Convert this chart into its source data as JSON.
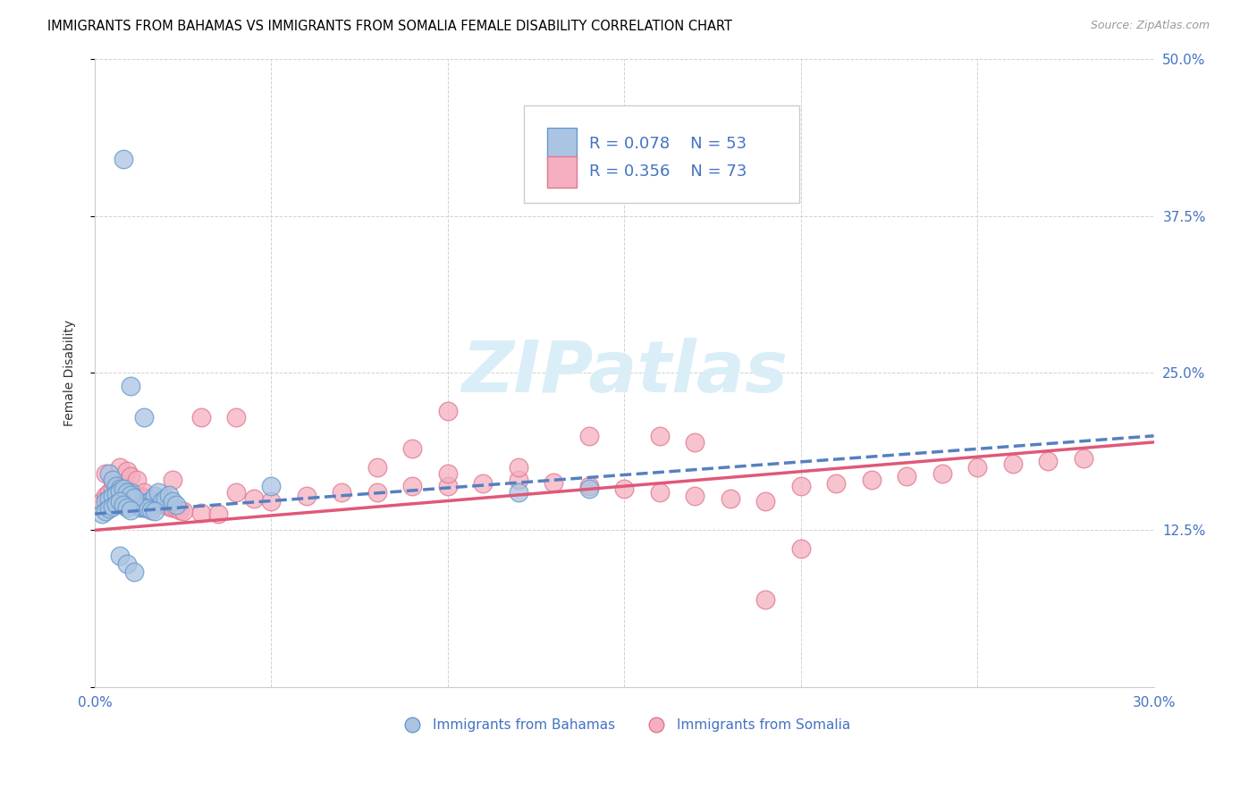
{
  "title": "IMMIGRANTS FROM BAHAMAS VS IMMIGRANTS FROM SOMALIA FEMALE DISABILITY CORRELATION CHART",
  "source": "Source: ZipAtlas.com",
  "ylabel": "Female Disability",
  "xlim": [
    0.0,
    0.3
  ],
  "ylim": [
    0.0,
    0.5
  ],
  "xticks": [
    0.0,
    0.05,
    0.1,
    0.15,
    0.2,
    0.25,
    0.3
  ],
  "yticks": [
    0.0,
    0.125,
    0.25,
    0.375,
    0.5
  ],
  "ytick_labels": [
    "",
    "12.5%",
    "25.0%",
    "37.5%",
    "50.0%"
  ],
  "xtick_labels": [
    "0.0%",
    "",
    "",
    "",
    "",
    "",
    "30.0%"
  ],
  "color_bahamas": "#aac4e2",
  "color_somalia": "#f5afc0",
  "edge_bahamas": "#6699cc",
  "edge_somalia": "#e07890",
  "line_bahamas": "#5580c0",
  "line_somalia": "#e05878",
  "watermark_color": "#daeef8",
  "bahamas_x": [
    0.008,
    0.01,
    0.012,
    0.013,
    0.015,
    0.016,
    0.017,
    0.018,
    0.019,
    0.02,
    0.021,
    0.022,
    0.023,
    0.004,
    0.005,
    0.006,
    0.007,
    0.008,
    0.009,
    0.01,
    0.011,
    0.012,
    0.013,
    0.014,
    0.015,
    0.016,
    0.017,
    0.003,
    0.004,
    0.005,
    0.006,
    0.007,
    0.008,
    0.009,
    0.01,
    0.011,
    0.002,
    0.003,
    0.004,
    0.005,
    0.006,
    0.007,
    0.008,
    0.009,
    0.01,
    0.05,
    0.12,
    0.14,
    0.01,
    0.014,
    0.007,
    0.009,
    0.011
  ],
  "bahamas_y": [
    0.42,
    0.155,
    0.145,
    0.143,
    0.147,
    0.149,
    0.152,
    0.155,
    0.148,
    0.15,
    0.153,
    0.148,
    0.145,
    0.17,
    0.165,
    0.16,
    0.158,
    0.155,
    0.152,
    0.15,
    0.148,
    0.146,
    0.144,
    0.143,
    0.142,
    0.141,
    0.14,
    0.148,
    0.15,
    0.152,
    0.154,
    0.156,
    0.158,
    0.155,
    0.153,
    0.151,
    0.138,
    0.14,
    0.142,
    0.144,
    0.146,
    0.148,
    0.145,
    0.143,
    0.141,
    0.16,
    0.155,
    0.158,
    0.24,
    0.215,
    0.105,
    0.098,
    0.092
  ],
  "somalia_x": [
    0.002,
    0.003,
    0.004,
    0.005,
    0.006,
    0.007,
    0.008,
    0.009,
    0.01,
    0.011,
    0.012,
    0.013,
    0.014,
    0.015,
    0.016,
    0.017,
    0.018,
    0.019,
    0.02,
    0.021,
    0.022,
    0.023,
    0.024,
    0.025,
    0.03,
    0.035,
    0.04,
    0.045,
    0.05,
    0.06,
    0.07,
    0.08,
    0.09,
    0.1,
    0.11,
    0.12,
    0.13,
    0.14,
    0.15,
    0.16,
    0.17,
    0.18,
    0.19,
    0.2,
    0.21,
    0.22,
    0.23,
    0.24,
    0.25,
    0.26,
    0.27,
    0.28,
    0.003,
    0.005,
    0.007,
    0.009,
    0.01,
    0.012,
    0.014,
    0.018,
    0.022,
    0.03,
    0.04,
    0.1,
    0.1,
    0.12,
    0.14,
    0.08,
    0.09,
    0.16,
    0.17,
    0.19,
    0.2
  ],
  "somalia_y": [
    0.148,
    0.152,
    0.155,
    0.158,
    0.16,
    0.162,
    0.16,
    0.158,
    0.156,
    0.154,
    0.153,
    0.152,
    0.151,
    0.15,
    0.149,
    0.148,
    0.147,
    0.146,
    0.145,
    0.144,
    0.143,
    0.142,
    0.141,
    0.14,
    0.139,
    0.138,
    0.155,
    0.15,
    0.148,
    0.152,
    0.155,
    0.155,
    0.16,
    0.16,
    0.162,
    0.165,
    0.163,
    0.16,
    0.158,
    0.155,
    0.152,
    0.15,
    0.148,
    0.16,
    0.162,
    0.165,
    0.168,
    0.17,
    0.175,
    0.178,
    0.18,
    0.182,
    0.17,
    0.165,
    0.175,
    0.172,
    0.168,
    0.165,
    0.155,
    0.15,
    0.165,
    0.215,
    0.215,
    0.22,
    0.17,
    0.175,
    0.2,
    0.175,
    0.19,
    0.2,
    0.195,
    0.07,
    0.11
  ],
  "b_line_x0": 0.0,
  "b_line_x1": 0.3,
  "b_line_y0": 0.138,
  "b_line_y1": 0.2,
  "s_line_x0": 0.0,
  "s_line_x1": 0.3,
  "s_line_y0": 0.125,
  "s_line_y1": 0.195
}
